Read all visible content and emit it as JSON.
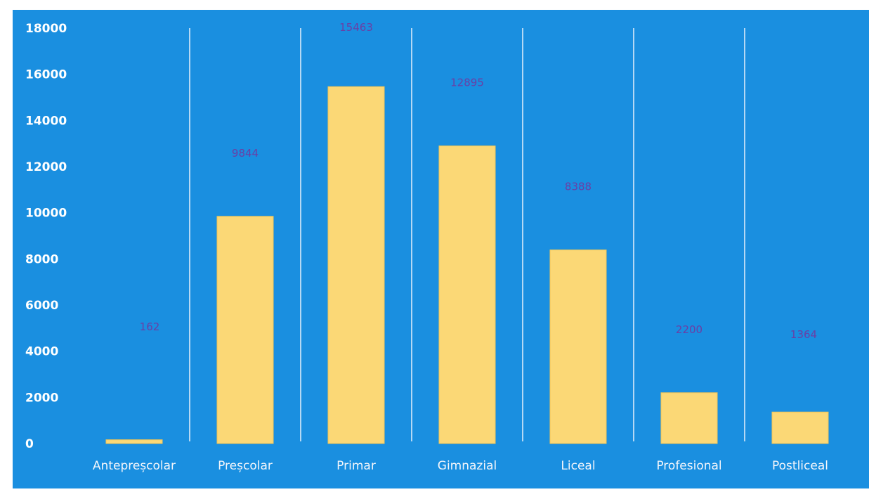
{
  "chart_data": {
    "type": "bar",
    "categories": [
      "Antepreșcolar",
      "Preșcolar",
      "Primar",
      "Gimnazial",
      "Liceal",
      "Profesional",
      "Postliceal"
    ],
    "values": [
      162,
      9844,
      15463,
      12895,
      8388,
      2200,
      1364
    ],
    "data_labels": [
      "162",
      "9844",
      "15463",
      "12895",
      "8388",
      "2200",
      "1364"
    ],
    "y_ticks": [
      "0",
      "2000",
      "4000",
      "6000",
      "8000",
      "10000",
      "12000",
      "14000",
      "16000",
      "18000"
    ],
    "ylim": [
      0,
      18000
    ],
    "grid": false,
    "category_separators": true,
    "colors": {
      "background": "#1a8fe0",
      "bar": "#fbd876",
      "tick_label": "#ffffff",
      "category_label": "#f4f6fb",
      "data_label": "#6a3fa5",
      "separator": "#e8f0fa"
    }
  }
}
